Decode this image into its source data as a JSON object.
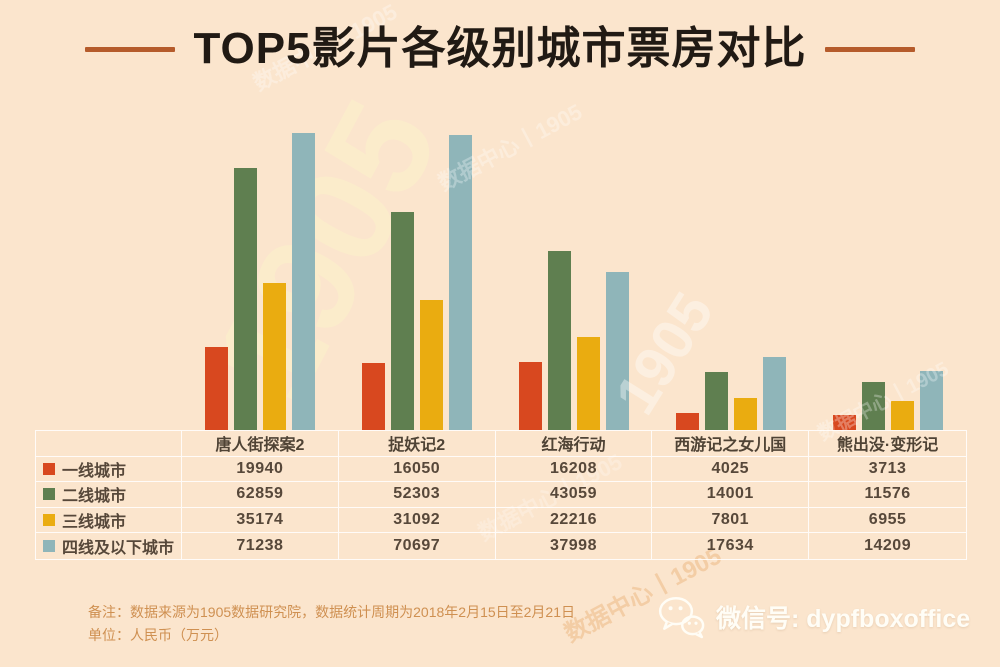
{
  "page": {
    "background": "#fbe5cd"
  },
  "header": {
    "title": "TOP5影片各级别城市票房对比",
    "accent_color": "#b55b2b"
  },
  "chart_data": {
    "type": "bar",
    "title": "TOP5影片各级别城市票房对比",
    "categories": [
      "唐人街探案2",
      "捉妖记2",
      "红海行动",
      "西游记之女儿国",
      "熊出没·变形记"
    ],
    "series": [
      {
        "name": "一线城市",
        "color": "#d8481f",
        "values": [
          19940,
          16050,
          16208,
          4025,
          3713
        ]
      },
      {
        "name": "二线城市",
        "color": "#5f7f50",
        "values": [
          62859,
          52303,
          43059,
          14001,
          11576
        ]
      },
      {
        "name": "三线城市",
        "color": "#eaac10",
        "values": [
          35174,
          31092,
          22216,
          7801,
          6955
        ]
      },
      {
        "name": "四线及以下城市",
        "color": "#8fb5b9",
        "values": [
          71238,
          70697,
          37998,
          17634,
          14209
        ]
      }
    ],
    "ylim": [
      0,
      71238
    ],
    "unit": "人民币（万元）",
    "grid": false,
    "legend_position": "table-rows-left"
  },
  "footer": {
    "note_line1": "备注：数据来源为1905数据研究院，数据统计周期为2018年2月15日至2月21日",
    "note_line2": "单位：人民币（万元）",
    "wechat_label": "微信号: dypfboxoffice"
  },
  "watermark": {
    "text": "数据中心丨1905",
    "short": "1905"
  }
}
